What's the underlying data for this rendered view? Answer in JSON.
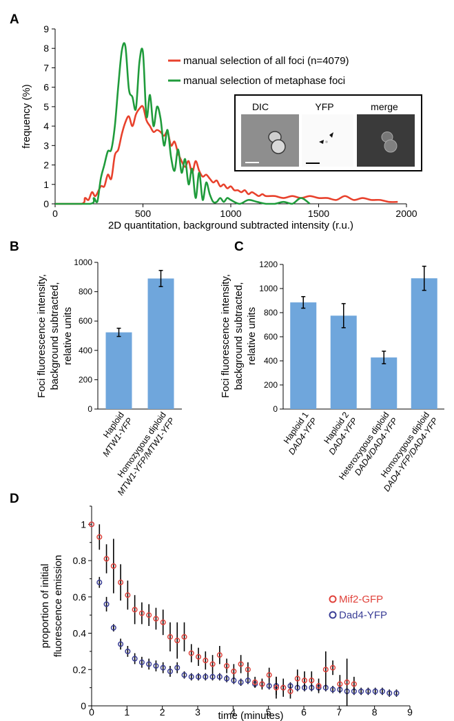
{
  "panel_labels": [
    "A",
    "B",
    "C",
    "D"
  ],
  "inset": {
    "labels": [
      "DIC",
      "YFP",
      "merge"
    ]
  },
  "chart_data": [
    {
      "panel": "A",
      "type": "line",
      "title": "",
      "xlabel": "2D quantitation, background subtracted intensity (r.u.)",
      "ylabel": "frequency (%)",
      "xlim": [
        0,
        2000
      ],
      "ylim": [
        0,
        9
      ],
      "xticks": [
        "0",
        "500",
        "1000",
        "1500",
        "2000"
      ],
      "yticks": [
        "0",
        "1",
        "2",
        "3",
        "4",
        "5",
        "6",
        "7",
        "8",
        "9"
      ],
      "legend_position": "top-right",
      "series": [
        {
          "name": "manual selection of all foci (n=4079)",
          "color": "#e8412c",
          "x": [
            0,
            150,
            170,
            190,
            210,
            230,
            260,
            280,
            300,
            320,
            340,
            360,
            380,
            400,
            420,
            440,
            460,
            480,
            500,
            520,
            540,
            560,
            580,
            600,
            620,
            640,
            660,
            680,
            700,
            720,
            740,
            760,
            780,
            800,
            820,
            840,
            860,
            880,
            900,
            920,
            940,
            960,
            980,
            1000,
            1020,
            1040,
            1060,
            1080,
            1100,
            1120,
            1140,
            1160,
            1180,
            1200,
            1250,
            1300,
            1350,
            1400,
            1450,
            1500,
            1550,
            1600,
            1650,
            1700,
            1750,
            1800,
            1850,
            1900,
            1950
          ],
          "y": [
            0,
            0,
            0.3,
            0.2,
            0.6,
            0.4,
            0.9,
            0.9,
            1.5,
            1.3,
            2.5,
            2.8,
            3.6,
            4.2,
            4.5,
            4.0,
            4.6,
            4.9,
            5.0,
            4.3,
            4.0,
            3.7,
            3.8,
            3.7,
            3.5,
            3.7,
            3.0,
            3.2,
            2.6,
            2.2,
            1.9,
            2.2,
            1.6,
            2.2,
            1.7,
            1.4,
            1.5,
            1.3,
            1.1,
            1.2,
            0.9,
            1.0,
            0.8,
            0.9,
            0.7,
            0.7,
            0.6,
            0.7,
            0.5,
            0.6,
            0.5,
            0.4,
            0.5,
            0.4,
            0.4,
            0.3,
            0.4,
            0.3,
            0.4,
            0.3,
            0.3,
            0.2,
            0.4,
            0.2,
            0.3,
            0.2,
            0.2,
            0.1,
            0.1
          ]
        },
        {
          "name": "manual selection of metaphase foci",
          "color": "#1f9b3b",
          "x": [
            0,
            200,
            220,
            240,
            260,
            280,
            300,
            320,
            340,
            360,
            380,
            400,
            420,
            440,
            460,
            480,
            500,
            520,
            540,
            560,
            580,
            600,
            620,
            640,
            660,
            680,
            700,
            720,
            740,
            760,
            780,
            800,
            820,
            840,
            860,
            880,
            900,
            920,
            940,
            960,
            980,
            1000,
            1050,
            1100,
            1150,
            1200,
            1250,
            1300,
            1350,
            1400,
            1450
          ],
          "y": [
            0,
            0,
            0.3,
            0.1,
            1.3,
            2.0,
            2.7,
            2.8,
            4.0,
            6.1,
            7.9,
            8.1,
            5.9,
            5.5,
            4.9,
            7.3,
            7.8,
            4.5,
            5.6,
            4.0,
            5.0,
            4.4,
            3.0,
            3.8,
            2.4,
            1.7,
            2.8,
            1.6,
            2.3,
            1.0,
            1.8,
            0.3,
            1.6,
            0.2,
            1.1,
            0.5,
            0.1,
            0.1,
            0.3,
            0.1,
            0.3,
            0.2,
            0.0,
            0.2,
            0.1,
            0.0,
            0.0,
            0.1,
            0.0,
            0.3,
            0.0
          ]
        }
      ]
    },
    {
      "panel": "B",
      "type": "bar",
      "title": "",
      "ylabel": "Foci fluorescence intensity, background subtracted, relative units",
      "ylim": [
        0,
        1000
      ],
      "yticks": [
        "0",
        "200",
        "400",
        "600",
        "800",
        "1000"
      ],
      "categories": [
        [
          "Haploid",
          "MTW1-YFP"
        ],
        [
          "Homozygous diploid",
          "MTW1-YFP/MTW1-YFP"
        ]
      ],
      "values": [
        523,
        890
      ],
      "errors": [
        28,
        55
      ],
      "color": "#6fa6dc"
    },
    {
      "panel": "C",
      "type": "bar",
      "title": "",
      "ylabel": "Foci fluorescence intensity, background subtracted, relative units",
      "ylim": [
        0,
        1200
      ],
      "yticks": [
        "0",
        "200",
        "400",
        "600",
        "800",
        "1000",
        "1200"
      ],
      "categories": [
        [
          "Haploid 1",
          "DAD4-YFP"
        ],
        [
          "Haploid 2",
          "DAD4-YFP"
        ],
        [
          "Heterozygous diploid",
          "DAD4/DAD4-YFP"
        ],
        [
          "Homozygous diploid",
          "DAD4-YFP/DAD4-YFP"
        ]
      ],
      "values": [
        885,
        775,
        428,
        1085
      ],
      "errors": [
        48,
        100,
        52,
        100
      ],
      "color": "#6fa6dc"
    },
    {
      "panel": "D",
      "type": "scatter",
      "title": "",
      "xlabel": "time (minutes)",
      "ylabel": "proportion of initial fluorescence emission",
      "xlim": [
        0,
        9
      ],
      "ylim": [
        0,
        1.1
      ],
      "xticks": [
        "0",
        "1",
        "2",
        "3",
        "4",
        "5",
        "6",
        "7",
        "8",
        "9"
      ],
      "yticks": [
        "0",
        "0.2",
        "0.4",
        "0.6",
        "0.8",
        "1"
      ],
      "legend_position": "right",
      "series": [
        {
          "name": "Mif2-GFP",
          "color": "#e0413a",
          "x": [
            0.0,
            0.22,
            0.42,
            0.62,
            0.82,
            1.02,
            1.22,
            1.42,
            1.62,
            1.82,
            2.02,
            2.22,
            2.42,
            2.62,
            2.82,
            3.02,
            3.22,
            3.42,
            3.62,
            3.82,
            4.02,
            4.22,
            4.42,
            4.62,
            4.82,
            5.02,
            5.22,
            5.42,
            5.62,
            5.82,
            6.02,
            6.22,
            6.42,
            6.62,
            6.82,
            7.02,
            7.22,
            7.42
          ],
          "y": [
            1.0,
            0.93,
            0.81,
            0.77,
            0.68,
            0.61,
            0.53,
            0.51,
            0.5,
            0.48,
            0.46,
            0.38,
            0.36,
            0.38,
            0.29,
            0.27,
            0.25,
            0.23,
            0.28,
            0.22,
            0.19,
            0.23,
            0.2,
            0.13,
            0.12,
            0.17,
            0.1,
            0.1,
            0.08,
            0.15,
            0.14,
            0.14,
            0.11,
            0.2,
            0.21,
            0.12,
            0.13,
            0.12
          ],
          "err": [
            0,
            0.07,
            0.08,
            0.15,
            0.1,
            0.08,
            0.08,
            0.06,
            0.06,
            0.06,
            0.07,
            0.08,
            0.1,
            0.08,
            0.05,
            0.05,
            0.05,
            0.05,
            0.05,
            0.04,
            0.04,
            0.05,
            0.04,
            0.03,
            0.03,
            0.04,
            0.06,
            0.05,
            0.04,
            0.05,
            0.05,
            0.05,
            0.04,
            0.1,
            0.04,
            0.05,
            0.13,
            0.04
          ]
        },
        {
          "name": "Dad4-YFP",
          "color": "#3a3e96",
          "x": [
            0.0,
            0.22,
            0.42,
            0.62,
            0.82,
            1.02,
            1.22,
            1.42,
            1.62,
            1.82,
            2.02,
            2.22,
            2.42,
            2.62,
            2.82,
            3.02,
            3.22,
            3.42,
            3.62,
            3.82,
            4.02,
            4.22,
            4.42,
            4.62,
            4.82,
            5.02,
            5.22,
            5.42,
            5.62,
            5.82,
            6.02,
            6.22,
            6.42,
            6.62,
            6.82,
            7.02,
            7.22,
            7.42,
            7.62,
            7.82,
            8.02,
            8.22,
            8.42,
            8.62
          ],
          "y": [
            1.0,
            0.68,
            0.56,
            0.43,
            0.34,
            0.3,
            0.26,
            0.24,
            0.23,
            0.22,
            0.21,
            0.19,
            0.21,
            0.17,
            0.16,
            0.16,
            0.16,
            0.16,
            0.16,
            0.15,
            0.14,
            0.13,
            0.14,
            0.12,
            0.12,
            0.11,
            0.11,
            0.1,
            0.11,
            0.1,
            0.1,
            0.1,
            0.1,
            0.1,
            0.09,
            0.09,
            0.08,
            0.08,
            0.08,
            0.08,
            0.08,
            0.08,
            0.07,
            0.07
          ],
          "err": [
            0,
            0.03,
            0.04,
            0.02,
            0.03,
            0.03,
            0.03,
            0.03,
            0.03,
            0.03,
            0.03,
            0.03,
            0.03,
            0.02,
            0.02,
            0.02,
            0.02,
            0.02,
            0.02,
            0.02,
            0.02,
            0.02,
            0.02,
            0.02,
            0.02,
            0.02,
            0.05,
            0.02,
            0.02,
            0.02,
            0.02,
            0.02,
            0.02,
            0.02,
            0.02,
            0.02,
            0.02,
            0.02,
            0.02,
            0.02,
            0.02,
            0.02,
            0.02,
            0.02
          ]
        }
      ]
    }
  ]
}
